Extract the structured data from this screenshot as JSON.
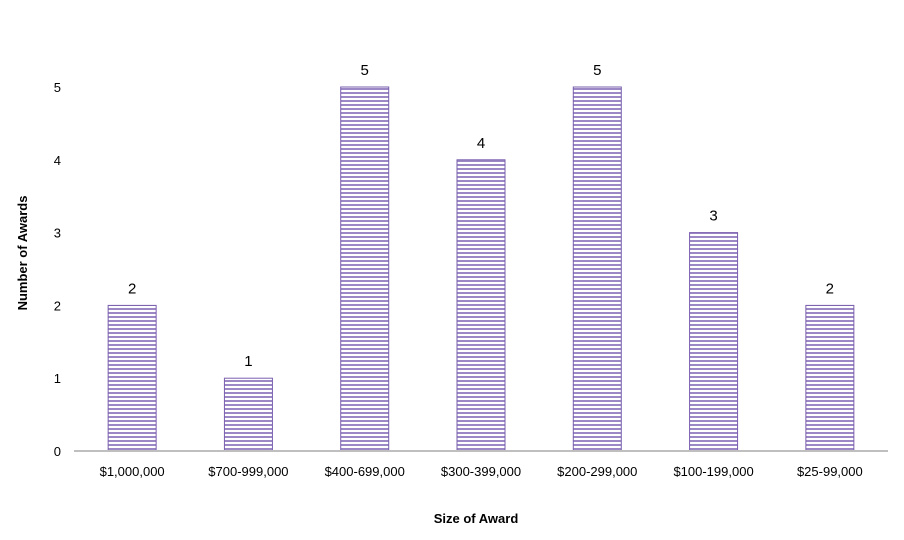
{
  "chart_data": {
    "type": "bar",
    "categories": [
      "$1,000,000",
      "$700-999,000",
      "$400-699,000",
      "$300-399,000",
      "$200-299,000",
      "$100-199,000",
      "$25-99,000"
    ],
    "values": [
      2,
      1,
      5,
      4,
      5,
      3,
      2
    ],
    "data_labels": [
      "2",
      "1",
      "5",
      "4",
      "5",
      "3",
      "2"
    ],
    "xlabel": "Size of Award",
    "ylabel": "Number of Awards",
    "ylim": [
      0,
      5
    ],
    "yticks": [
      "0",
      "1",
      "2",
      "3",
      "4",
      "5"
    ],
    "grid": false,
    "legend": "none",
    "bar_color": "#9b88c4",
    "bar_stripe_color": "#ffffff",
    "bar_border_color": "#7a5fae",
    "axis_color": "#bfbfbf"
  }
}
